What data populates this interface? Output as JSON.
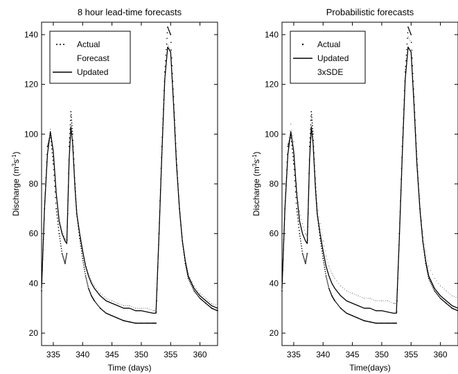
{
  "chart_data": [
    {
      "type": "line",
      "title": "8 hour lead-time forecasts",
      "xlabel": "Time (days)",
      "ylabel_main": "Discharge (m",
      "ylabel_sup1": "3",
      "ylabel_mid": "s",
      "ylabel_sup2": "-1",
      "ylabel_end": ")",
      "xlim": [
        333,
        363
      ],
      "ylim": [
        15,
        145
      ],
      "xticks": [
        335,
        340,
        345,
        350,
        355,
        360
      ],
      "yticks": [
        20,
        40,
        60,
        80,
        100,
        120,
        140
      ],
      "legend_position": "top-left",
      "legend": [
        {
          "label": "Actual",
          "style": "dots"
        },
        {
          "label": "Forecast",
          "style": "none"
        },
        {
          "label": "Updated",
          "style": "solid"
        }
      ],
      "series": [
        {
          "name": "Actual",
          "style": "dots",
          "x": [
            333.0,
            333.5,
            334.0,
            334.5,
            335.0,
            335.5,
            336.0,
            336.5,
            337.0,
            337.3,
            337.7,
            338.0,
            338.3,
            338.7,
            339.0,
            339.5,
            340.0,
            340.5,
            341.0,
            341.5,
            342.0,
            343.0,
            344.0,
            345.0,
            346.0,
            347.0,
            348.0,
            349.0,
            350.0,
            351.0,
            352.0,
            352.5,
            353.0,
            353.5,
            354.0,
            354.5,
            355.0,
            355.5,
            356.0,
            356.5,
            357.0,
            357.5,
            358.0,
            359.0,
            360.0,
            361.0,
            362.0,
            363.0
          ],
          "y": [
            37,
            70,
            95,
            100,
            88,
            70,
            60,
            52,
            48,
            52,
            95,
            109,
            100,
            80,
            68,
            58,
            50,
            43,
            38,
            35,
            33,
            30,
            28,
            27,
            26,
            25,
            24.5,
            24,
            24,
            24,
            24,
            24,
            60,
            95,
            125,
            143,
            140,
            115,
            90,
            70,
            57,
            48,
            42,
            37,
            34,
            32,
            30,
            29
          ]
        },
        {
          "name": "Updated",
          "style": "solid",
          "x": [
            333.0,
            333.5,
            334.0,
            334.5,
            335.0,
            335.5,
            336.0,
            336.5,
            337.0,
            337.3,
            337.7,
            338.0,
            338.3,
            338.7,
            339.0,
            339.5,
            340.0,
            340.5,
            341.0,
            341.5,
            342.0,
            343.0,
            344.0,
            345.0,
            346.0,
            347.0,
            348.0,
            349.0,
            350.0,
            351.0,
            352.0,
            352.5,
            353.0,
            353.5,
            354.0,
            354.5,
            355.0,
            355.5,
            356.0,
            356.5,
            357.0,
            357.5,
            358.0,
            359.0,
            360.0,
            361.0,
            362.0,
            363.0
          ],
          "y": [
            38,
            70,
            92,
            101,
            93,
            76,
            65,
            60,
            57,
            56,
            90,
            103,
            96,
            78,
            68,
            60,
            53,
            47,
            43,
            40,
            38,
            35,
            33,
            32,
            31,
            30,
            30,
            29,
            29,
            28.5,
            28,
            28,
            58,
            92,
            122,
            135,
            133,
            112,
            88,
            70,
            57,
            49,
            43,
            38,
            35,
            33,
            31,
            30
          ]
        },
        {
          "name": "Forecast",
          "style": "dots-sparse",
          "x": [
            333.0,
            333.5,
            334.0,
            334.5,
            335.0,
            335.5,
            336.0,
            336.5,
            337.0,
            337.3,
            337.7,
            338.0,
            338.3,
            338.7,
            339.0,
            339.5,
            340.0,
            340.5,
            341.0,
            341.5,
            342.0,
            343.0,
            344.0,
            345.0,
            346.0,
            347.0,
            348.0,
            349.0,
            350.0,
            351.0,
            352.0,
            352.5,
            353.0,
            353.5,
            354.0,
            354.5,
            355.0,
            355.5,
            356.0,
            356.5,
            357.0,
            357.5,
            358.0,
            359.0,
            360.0,
            361.0,
            362.0,
            363.0
          ],
          "y": [
            38,
            71,
            93,
            102,
            94,
            77,
            66,
            61,
            58,
            57,
            92,
            104,
            97,
            79,
            69,
            61,
            54,
            48,
            44,
            41,
            39,
            36,
            34,
            33,
            32,
            31,
            31,
            30,
            30,
            30,
            29,
            29,
            59,
            93,
            123,
            136,
            134,
            113,
            89,
            71,
            58,
            50,
            44,
            39,
            36,
            34,
            32,
            31
          ]
        }
      ]
    },
    {
      "type": "line",
      "title": "Probabilistic forecasts",
      "xlabel": "Time(days)",
      "ylabel_main": "Discharge (m",
      "ylabel_sup1": "3",
      "ylabel_mid": "s",
      "ylabel_sup2": "-1",
      "ylabel_end": ")",
      "xlim": [
        333,
        363
      ],
      "ylim": [
        15,
        145
      ],
      "xticks": [
        335,
        340,
        345,
        350,
        355,
        360
      ],
      "yticks": [
        20,
        40,
        60,
        80,
        100,
        120,
        140
      ],
      "legend_position": "top-left",
      "legend": [
        {
          "label": "Actual",
          "style": "dots"
        },
        {
          "label": "Updated",
          "style": "solid"
        },
        {
          "label": "3xSDE",
          "style": "none"
        }
      ],
      "series": [
        {
          "name": "Actual",
          "style": "dots",
          "x": [
            333.0,
            333.5,
            334.0,
            334.5,
            335.0,
            335.5,
            336.0,
            336.5,
            337.0,
            337.3,
            337.7,
            338.0,
            338.3,
            338.7,
            339.0,
            339.5,
            340.0,
            340.5,
            341.0,
            341.5,
            342.0,
            343.0,
            344.0,
            345.0,
            346.0,
            347.0,
            348.0,
            349.0,
            350.0,
            351.0,
            352.0,
            352.5,
            353.0,
            353.5,
            354.0,
            354.5,
            355.0,
            355.5,
            356.0,
            356.5,
            357.0,
            357.5,
            358.0,
            359.0,
            360.0,
            361.0,
            362.0,
            363.0
          ],
          "y": [
            37,
            70,
            95,
            100,
            88,
            70,
            60,
            52,
            48,
            52,
            95,
            109,
            100,
            80,
            68,
            58,
            50,
            43,
            38,
            35,
            33,
            30,
            28,
            27,
            26,
            25,
            24.5,
            24,
            24,
            24,
            24,
            24,
            60,
            95,
            125,
            143,
            140,
            115,
            90,
            70,
            57,
            48,
            42,
            37,
            34,
            32,
            30,
            29
          ]
        },
        {
          "name": "Updated",
          "style": "solid",
          "x": [
            333.0,
            333.5,
            334.0,
            334.5,
            335.0,
            335.5,
            336.0,
            336.5,
            337.0,
            337.3,
            337.7,
            338.0,
            338.3,
            338.7,
            339.0,
            339.5,
            340.0,
            340.5,
            341.0,
            341.5,
            342.0,
            343.0,
            344.0,
            345.0,
            346.0,
            347.0,
            348.0,
            349.0,
            350.0,
            351.0,
            352.0,
            352.5,
            353.0,
            353.5,
            354.0,
            354.5,
            355.0,
            355.5,
            356.0,
            356.5,
            357.0,
            357.5,
            358.0,
            359.0,
            360.0,
            361.0,
            362.0,
            363.0
          ],
          "y": [
            38,
            70,
            92,
            101,
            93,
            76,
            65,
            60,
            57,
            56,
            90,
            103,
            96,
            78,
            68,
            60,
            53,
            47,
            43,
            40,
            38,
            35,
            33,
            32,
            31,
            30,
            30,
            29,
            29,
            28.5,
            28,
            28,
            58,
            92,
            122,
            135,
            133,
            112,
            88,
            70,
            57,
            49,
            43,
            38,
            35,
            33,
            31,
            30
          ]
        },
        {
          "name": "3xSDE",
          "style": "dots-sparse",
          "x": [
            333.0,
            333.5,
            334.0,
            334.5,
            335.0,
            335.5,
            336.0,
            336.5,
            337.0,
            337.3,
            337.7,
            338.0,
            338.3,
            338.7,
            339.0,
            339.5,
            340.0,
            340.5,
            341.0,
            341.5,
            342.0,
            343.0,
            344.0,
            345.0,
            346.0,
            347.0,
            348.0,
            349.0,
            350.0,
            351.0,
            352.0,
            352.5,
            353.0,
            353.5,
            354.0,
            354.5,
            355.0,
            355.5,
            356.0,
            356.5,
            357.0,
            357.5,
            358.0,
            359.0,
            360.0,
            361.0,
            362.0,
            363.0
          ],
          "y": [
            40,
            73,
            96,
            104,
            97,
            80,
            69,
            64,
            60,
            59,
            94,
            106,
            99,
            82,
            72,
            64,
            57,
            51,
            47,
            44,
            42,
            39,
            37,
            36,
            35,
            34,
            34,
            33,
            33,
            33,
            32,
            32,
            62,
            96,
            126,
            139,
            137,
            116,
            92,
            74,
            61,
            53,
            47,
            42,
            39,
            37,
            35,
            34
          ]
        }
      ]
    }
  ]
}
